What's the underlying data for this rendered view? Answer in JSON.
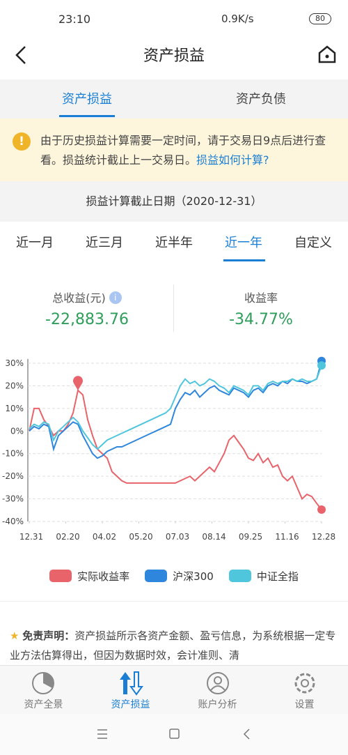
{
  "status": {
    "time": "23:10",
    "speed": "0.9K/s",
    "battery": "80"
  },
  "header": {
    "title": "资产损益"
  },
  "tabs": [
    "资产损益",
    "资产负债"
  ],
  "notice": {
    "text": "由于历史损益计算需要一定时间，请于交易日9点后进行查看。损益统计截止上一交易日。",
    "link": "损益如何计算?"
  },
  "cutoff": "损益计算截止日期（2020-12-31）",
  "periods": [
    "近一月",
    "近三月",
    "近半年",
    "近一年",
    "自定义"
  ],
  "stats": [
    {
      "label": "总收益(元)",
      "value": "-22,883.76"
    },
    {
      "label": "收益率",
      "value": "-34.77%"
    }
  ],
  "chart_data": {
    "type": "line",
    "xlim": [
      0,
      60
    ],
    "xticks": [
      {
        "value": 0,
        "label": "12.31"
      },
      {
        "value": 7.5,
        "label": "02.20"
      },
      {
        "value": 15,
        "label": "04.02"
      },
      {
        "value": 22.5,
        "label": "05.20"
      },
      {
        "value": 30,
        "label": "07.03"
      },
      {
        "value": 37.5,
        "label": "08.14"
      },
      {
        "value": 45,
        "label": "09.25"
      },
      {
        "value": 52.5,
        "label": "11.16"
      },
      {
        "value": 60,
        "label": "12.28"
      }
    ],
    "ylim": [
      -40,
      30
    ],
    "yticks": [
      {
        "value": 30,
        "label": "30%"
      },
      {
        "value": 20,
        "label": "20%"
      },
      {
        "value": 10,
        "label": "10%"
      },
      {
        "value": 0,
        "label": "0%"
      },
      {
        "value": -10,
        "label": "-10%"
      },
      {
        "value": -20,
        "label": "-20%"
      },
      {
        "value": -30,
        "label": "-30%"
      },
      {
        "value": -40,
        "label": "-40%"
      }
    ],
    "grid": true,
    "series": [
      {
        "name": "实际收益率",
        "color": "#e8636a",
        "values": [
          0,
          10,
          10,
          5,
          2,
          -2,
          0,
          0,
          3,
          8,
          18,
          16,
          5,
          -2,
          -8,
          -10,
          -12,
          -18,
          -20,
          -22,
          -23,
          -23,
          -23,
          -23,
          -23,
          -23,
          -23,
          -23,
          -23,
          -23,
          -23,
          -22,
          -21,
          -20,
          -22,
          -20,
          -18,
          -16,
          -18,
          -14,
          -10,
          -4,
          -2,
          -5,
          -8,
          -12,
          -13,
          -10,
          -14,
          -12,
          -16,
          -15,
          -20,
          -22,
          -20,
          -25,
          -30,
          -28,
          -29,
          -32,
          -34.77
        ]
      },
      {
        "name": "沪深300",
        "color": "#2f86dd",
        "values": [
          0,
          2,
          1,
          3,
          2,
          -8,
          -2,
          0,
          2,
          4,
          3,
          -2,
          -6,
          -10,
          -12,
          -11,
          -9,
          -8,
          -7,
          -7,
          -6,
          -5,
          -4,
          -3,
          -2,
          -1,
          0,
          1,
          2,
          3,
          10,
          14,
          17,
          16,
          18,
          15,
          17,
          19,
          20,
          18,
          17,
          16,
          19,
          18,
          17,
          15,
          18,
          19,
          17,
          20,
          21,
          20,
          22,
          21,
          23,
          22,
          22,
          21,
          22,
          23,
          31
        ]
      },
      {
        "name": "中证全指",
        "color": "#4fc6dc",
        "values": [
          1,
          3,
          2,
          4,
          3,
          -4,
          0,
          2,
          4,
          6,
          4,
          0,
          -3,
          -6,
          -8,
          -6,
          -4,
          -3,
          -2,
          -1,
          0,
          1,
          2,
          3,
          4,
          5,
          6,
          7,
          8,
          10,
          15,
          20,
          23,
          21,
          22,
          20,
          21,
          23,
          22,
          20,
          19,
          17,
          20,
          19,
          18,
          16,
          20,
          20,
          18,
          21,
          22,
          21,
          22,
          22,
          23,
          22,
          23,
          22,
          22,
          23,
          29
        ]
      }
    ]
  },
  "disclaimer": {
    "title": "免责声明：",
    "text": "资产损益所示各资产金额、盈亏信息，为系统根据一定专业方法估算得出，但因为数据时效，会计准则、清"
  },
  "nav": [
    "资产全景",
    "资产损益",
    "账户分析",
    "设置"
  ]
}
